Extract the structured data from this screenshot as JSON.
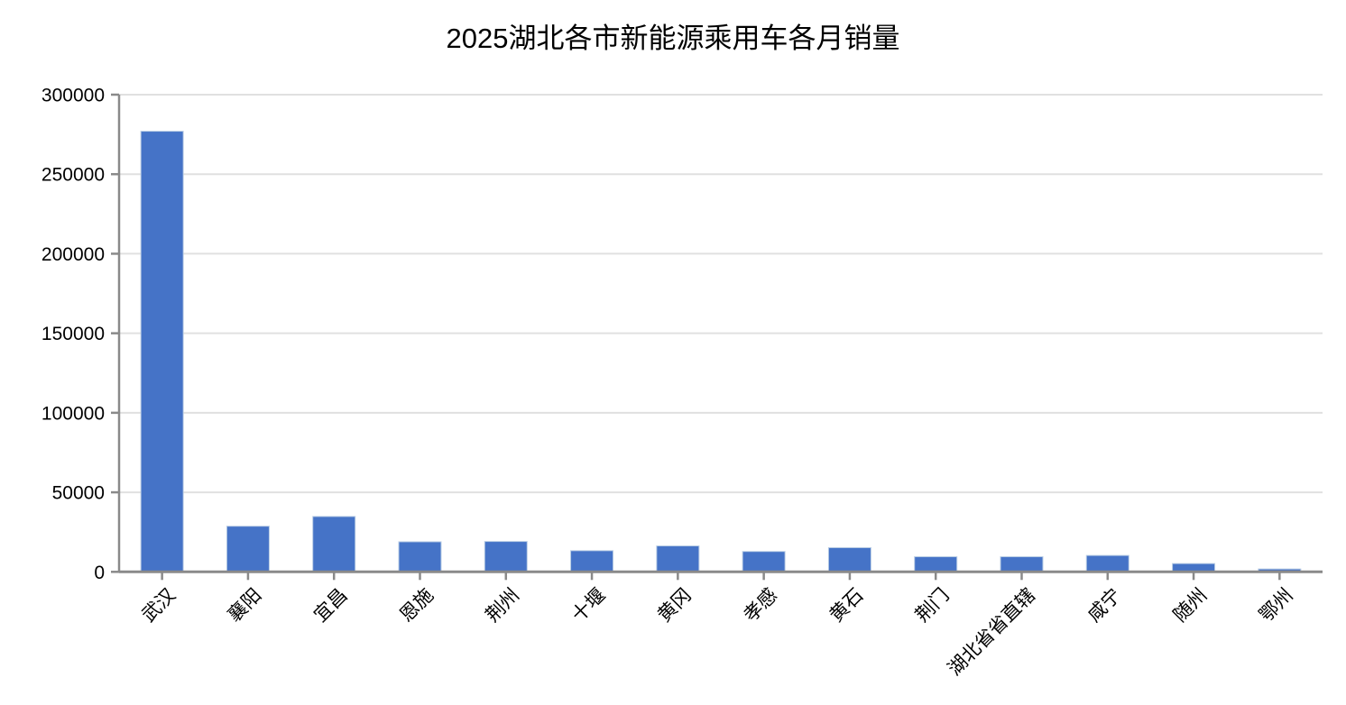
{
  "chart_data": {
    "type": "bar",
    "title": "2025湖北各市新能源乘用车各月销量",
    "categories": [
      "武汉",
      "襄阳",
      "宜昌",
      "恩施",
      "荆州",
      "十堰",
      "黄冈",
      "孝感",
      "黄石",
      "荆门",
      "湖北省省直辖",
      "咸宁",
      "随州",
      "鄂州"
    ],
    "values": [
      277000,
      28700,
      34800,
      18900,
      19100,
      13300,
      16300,
      12800,
      15200,
      9500,
      9500,
      10300,
      5200,
      1800
    ],
    "xlabel": "",
    "ylabel": "",
    "ylim": [
      0,
      300000
    ],
    "yticks": [
      0,
      50000,
      100000,
      150000,
      200000,
      250000,
      300000
    ],
    "ytick_labels": [
      "0",
      "50000",
      "100000",
      "150000",
      "200000",
      "250000",
      "300000"
    ],
    "grid": true,
    "legend": null,
    "x_label_rotation_deg": 45,
    "colors": {
      "bar_fill": "#4573c7",
      "bar_edge": "#b8cce4",
      "gridline": "#e0e0e0",
      "axis_line": "#8a8a8a",
      "tick_mark": "#8a8a8a",
      "text": "#000000",
      "background": "#ffffff"
    }
  }
}
